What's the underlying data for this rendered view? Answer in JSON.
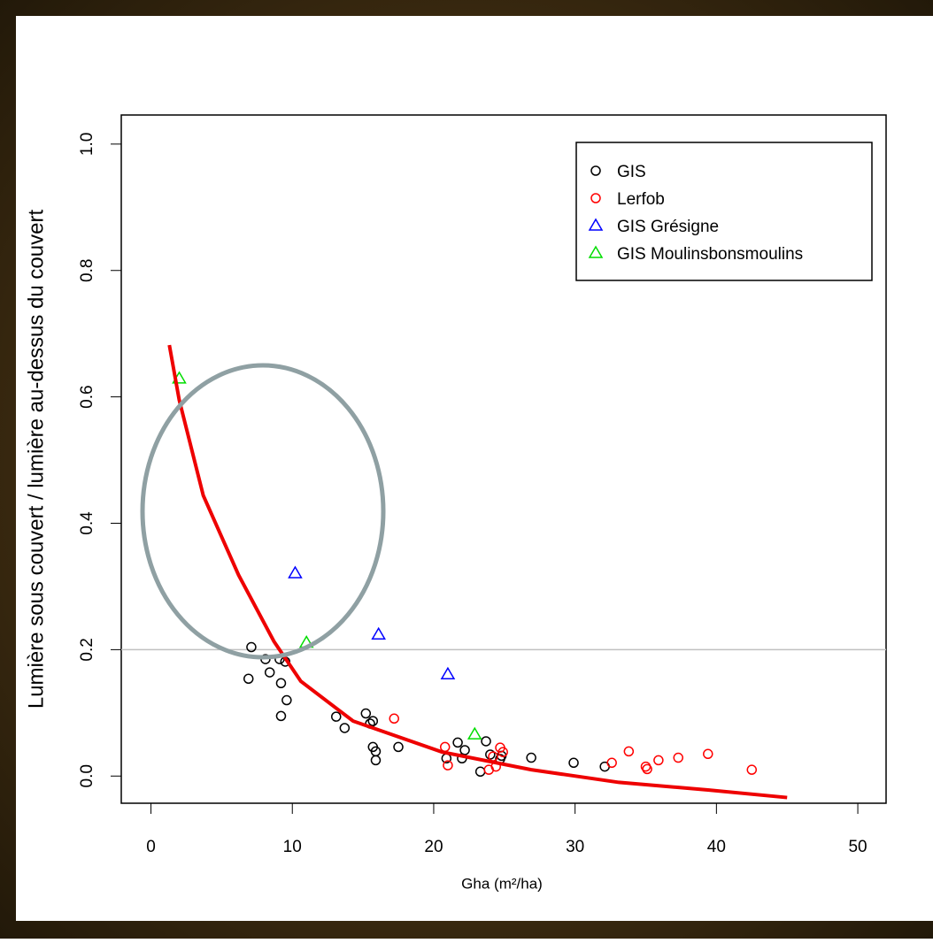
{
  "chart_data": {
    "type": "scatter",
    "x_label": "Gha (m²/ha)",
    "y_label": "Lumière sous couvert / lumière au-dessus du couvert",
    "xlim": [
      -2.1,
      52.0
    ],
    "ylim": [
      -0.043,
      1.046
    ],
    "xticks": [
      0,
      10,
      20,
      30,
      40,
      50
    ],
    "yticks": [
      {
        "value": 0,
        "label": "0.0"
      },
      0.2,
      0.4,
      0.6,
      0.8,
      {
        "value": 1,
        "label": "1.0"
      }
    ],
    "legend": "top-right",
    "hline": 0.2,
    "hline_color": "#c0c0c0",
    "series": [
      {
        "name": "GIS",
        "color": "#000000",
        "marker": "circle",
        "x": [
          6.9,
          7.1,
          8.1,
          8.4,
          9.1,
          9.2,
          9.2,
          9.5,
          9.6,
          13.1,
          13.7,
          15.2,
          15.5,
          15.7,
          15.7,
          15.9,
          15.9,
          17.5,
          20.9,
          21.7,
          22.0,
          22.2,
          23.3,
          23.7,
          24.0,
          24.7,
          24.8,
          26.9,
          29.9,
          32.1
        ],
        "values": [
          0.154,
          0.204,
          0.185,
          0.164,
          0.185,
          0.147,
          0.095,
          0.181,
          0.12,
          0.094,
          0.076,
          0.099,
          0.083,
          0.087,
          0.046,
          0.039,
          0.025,
          0.046,
          0.028,
          0.053,
          0.028,
          0.041,
          0.007,
          0.055,
          0.034,
          0.027,
          0.032,
          0.029,
          0.021,
          0.015
        ]
      },
      {
        "name": "Lerfob",
        "color": "#ff0000",
        "marker": "circle",
        "x": [
          17.2,
          20.8,
          21.0,
          23.9,
          24.2,
          24.4,
          24.7,
          24.9,
          32.6,
          33.8,
          35.0,
          35.1,
          35.9,
          37.3,
          39.4,
          42.5
        ],
        "values": [
          0.091,
          0.046,
          0.017,
          0.01,
          0.031,
          0.015,
          0.045,
          0.038,
          0.021,
          0.039,
          0.015,
          0.011,
          0.025,
          0.029,
          0.035,
          0.01
        ]
      },
      {
        "name": "GIS Grésigne",
        "color": "#0000ff",
        "marker": "triangle",
        "x": [
          10.2,
          16.1,
          21.0
        ],
        "values": [
          0.321,
          0.224,
          0.161
        ]
      },
      {
        "name": "GIS Moulinsbonsmoulins",
        "color": "#00dd00",
        "marker": "triangle",
        "x": [
          2.0,
          11.0,
          22.9
        ],
        "values": [
          0.629,
          0.211,
          0.066
        ]
      }
    ],
    "curve": {
      "color": "#ee0000",
      "x": [
        1.3,
        2.0,
        3.7,
        6.2,
        8.7,
        10.6,
        14.3,
        20.6,
        26.9,
        33.1,
        39.4,
        45.0
      ],
      "values": [
        0.682,
        0.595,
        0.444,
        0.318,
        0.213,
        0.15,
        0.087,
        0.038,
        0.01,
        -0.01,
        -0.022,
        -0.034
      ]
    }
  }
}
